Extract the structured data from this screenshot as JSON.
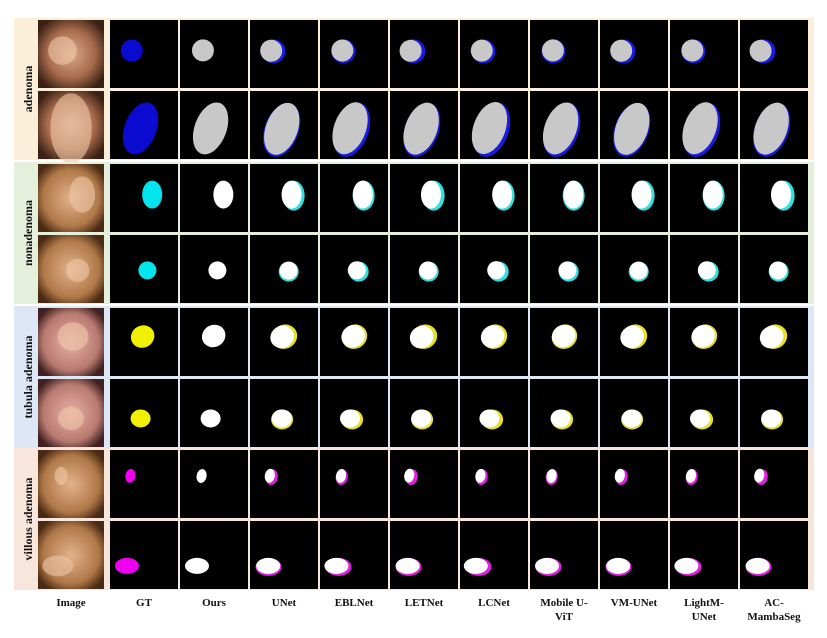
{
  "row_groups": [
    {
      "label": "adenoma"
    },
    {
      "label": "nonadenoma"
    },
    {
      "label": "tubula adenoma"
    },
    {
      "label": "villous adenoma"
    }
  ],
  "columns": [
    "Image",
    "GT",
    "Ours",
    "UNet",
    "EBLNet",
    "LETNet",
    "LCNet",
    "Mobile U-ViT",
    "VM-UNet",
    "LightM-UNet",
    "AC-MambaSeg"
  ]
}
